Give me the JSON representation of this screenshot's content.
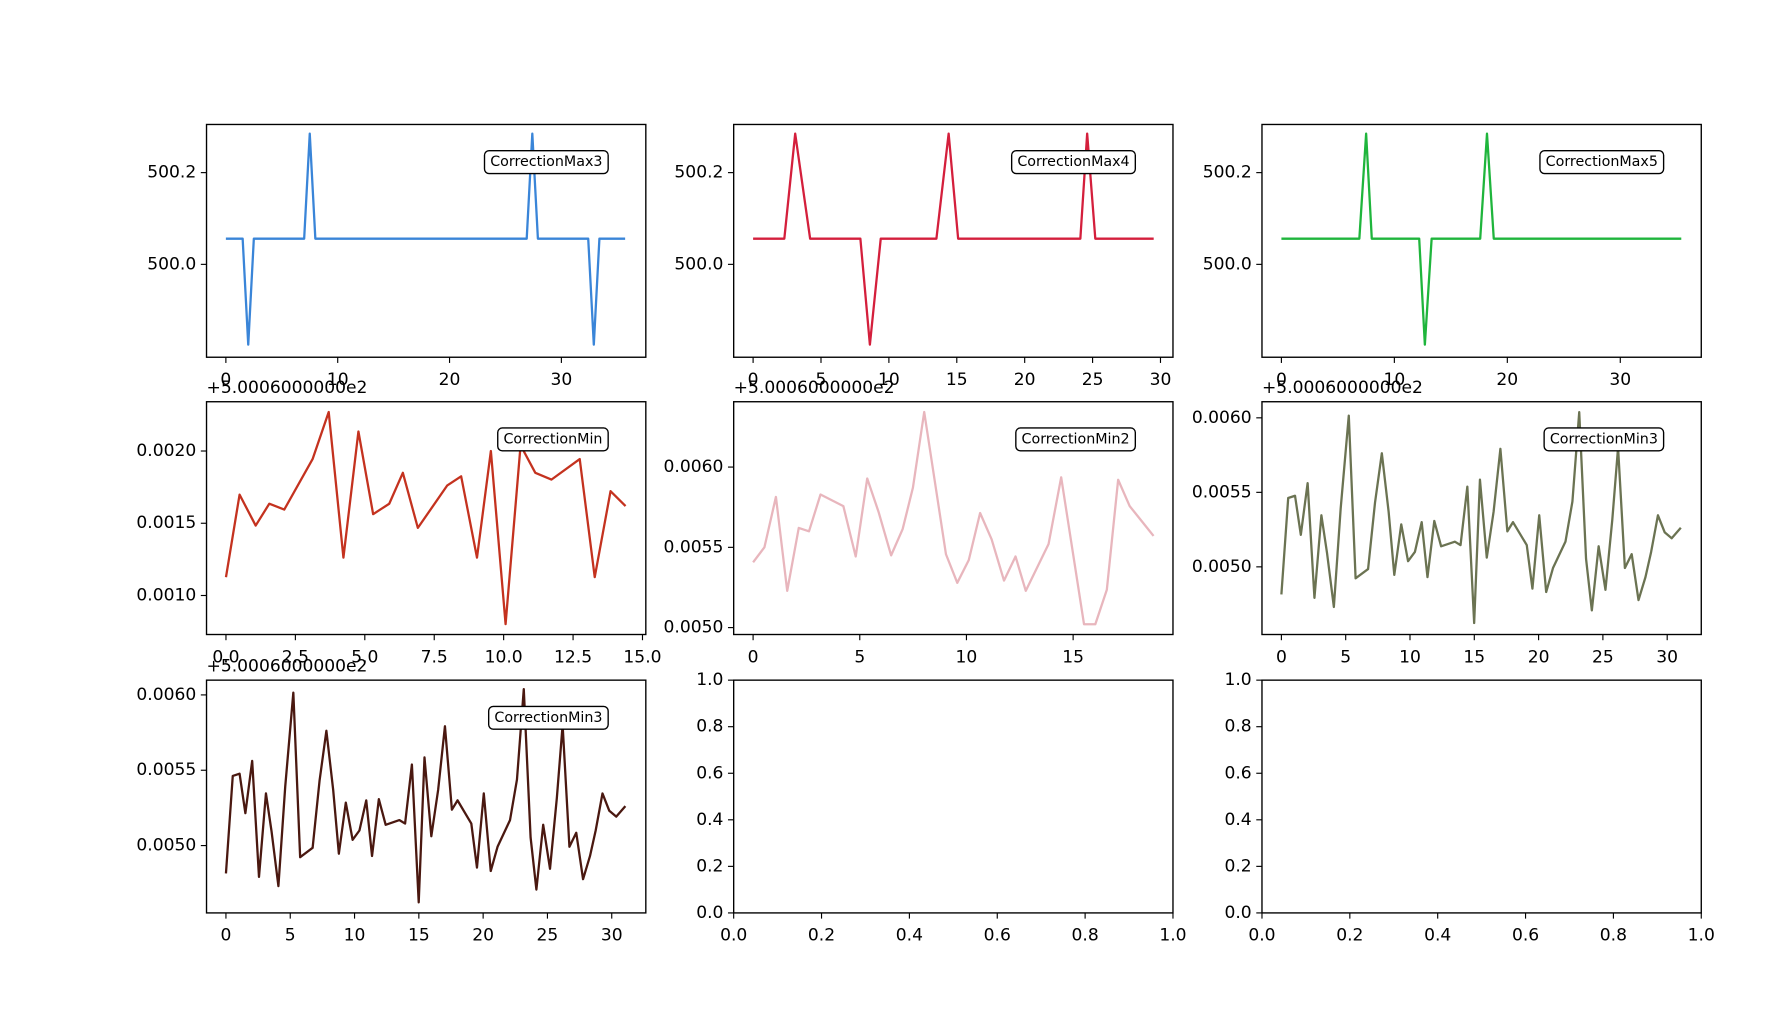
{
  "chart_data": [
    {
      "type": "line",
      "x": [
        0,
        1,
        1.5,
        2,
        2.5,
        4,
        6,
        7,
        7.5,
        8,
        10,
        14,
        18,
        22,
        26,
        26.9,
        27.4,
        27.9,
        30,
        32.4,
        32.9,
        33.4,
        35.7
      ],
      "series": [
        {
          "name": "CorrectionMax3",
          "color": "#3a85d8",
          "values": [
            500.056,
            500.056,
            500.056,
            499.825,
            500.056,
            500.056,
            500.056,
            500.056,
            500.285,
            500.056,
            500.056,
            500.056,
            500.056,
            500.056,
            500.056,
            500.056,
            500.285,
            500.056,
            500.056,
            500.056,
            499.825,
            500.056,
            500.056
          ]
        }
      ],
      "xlim": [
        -1.73,
        37.55
      ],
      "xticks": [
        0,
        10,
        20,
        30
      ],
      "ylim": [
        499.7975,
        500.305
      ],
      "yticks": [
        {
          "value": 500,
          "label": "500.0"
        },
        500.2
      ],
      "legend": "upper right"
    },
    {
      "type": "line",
      "x": [
        0,
        1,
        2.3,
        3.1,
        4.2,
        6,
        7.9,
        8.6,
        9.4,
        11,
        13.5,
        14.4,
        15.1,
        18,
        21,
        24.1,
        24.6,
        25.2,
        27,
        29.5
      ],
      "series": [
        {
          "name": "CorrectionMax4",
          "color": "#d41f3c",
          "values": [
            500.056,
            500.056,
            500.056,
            500.285,
            500.056,
            500.056,
            500.056,
            499.825,
            500.056,
            500.056,
            500.056,
            500.285,
            500.056,
            500.056,
            500.056,
            500.056,
            500.285,
            500.056,
            500.056,
            500.056
          ]
        }
      ],
      "xlim": [
        -1.43,
        30.92
      ],
      "xticks": [
        0,
        5,
        10,
        15,
        20,
        25,
        30
      ],
      "ylim": [
        499.7975,
        500.305
      ],
      "yticks": [
        {
          "value": 500,
          "label": "500.0"
        },
        500.2
      ],
      "legend": "upper right"
    },
    {
      "type": "line",
      "x": [
        0,
        2,
        4,
        6.9,
        7.5,
        8,
        10,
        12.2,
        12.7,
        13.3,
        15,
        17.6,
        18.2,
        18.8,
        22,
        26,
        30,
        35.4
      ],
      "series": [
        {
          "name": "CorrectionMax5",
          "color": "#1fb53c",
          "values": [
            500.056,
            500.056,
            500.056,
            500.056,
            500.285,
            500.056,
            500.056,
            500.056,
            499.825,
            500.056,
            500.056,
            500.056,
            500.285,
            500.056,
            500.056,
            500.056,
            500.056,
            500.056
          ]
        }
      ],
      "xlim": [
        -1.72,
        37.17
      ],
      "xticks": [
        0,
        10,
        20,
        30
      ],
      "ylim": [
        499.7975,
        500.305
      ],
      "yticks": [
        {
          "value": 500,
          "label": "500.0"
        },
        500.2
      ],
      "legend": "upper right"
    },
    {
      "type": "line",
      "x": [
        0,
        0.49,
        1.07,
        1.56,
        2.1,
        3.12,
        3.7,
        4.23,
        4.77,
        5.3,
        5.88,
        6.37,
        6.91,
        7.97,
        8.47,
        9.04,
        9.54,
        10.07,
        10.61,
        11.14,
        11.72,
        12.74,
        13.28,
        13.85,
        14.39
      ],
      "series": [
        {
          "name": "CorrectionMin",
          "color": "#c4321f",
          "values": [
            0.001127,
            0.001698,
            0.001484,
            0.001635,
            0.001595,
            0.001944,
            0.00227,
            0.001262,
            0.002135,
            0.001563,
            0.001635,
            0.001849,
            0.001468,
            0.001762,
            0.001825,
            0.001262,
            0.002,
            0.000802,
            0.00204,
            0.001849,
            0.001802,
            0.001944,
            0.001127,
            0.001722,
            0.001619
          ]
        }
      ],
      "xlim": [
        -0.7,
        15.12
      ],
      "xticks": [
        {
          "value": 0,
          "label": "0.0"
        },
        2.5,
        {
          "value": 5,
          "label": "5.0"
        },
        7.5,
        {
          "value": 10,
          "label": "10.0"
        },
        12.5,
        {
          "value": 15,
          "label": "15.0"
        }
      ],
      "ylim": [
        0.00073,
        0.002341
      ],
      "yticks": [
        {
          "value": 0.001,
          "label": "0.0010"
        },
        0.0015,
        {
          "value": 0.002,
          "label": "0.0020"
        }
      ],
      "y_offset": "+5.0006000000e2",
      "legend": "upper right"
    },
    {
      "type": "line",
      "x": [
        0,
        0.53,
        1.07,
        1.6,
        2.14,
        2.62,
        3.16,
        4.23,
        4.81,
        5.35,
        5.88,
        6.47,
        7.01,
        7.49,
        8.02,
        9.04,
        9.57,
        10.11,
        10.64,
        11.18,
        11.76,
        12.3,
        12.78,
        13.85,
        14.44,
        15.51,
        16.04,
        16.58,
        17.11,
        17.65,
        18.77
      ],
      "series": [
        {
          "name": "CorrectionMin2",
          "color": "#e8b6bd",
          "values": [
            0.005407,
            0.0055,
            0.005814,
            0.005229,
            0.005621,
            0.0056,
            0.005829,
            0.005757,
            0.005443,
            0.005929,
            0.005721,
            0.00545,
            0.005614,
            0.005871,
            0.006343,
            0.005457,
            0.005279,
            0.005421,
            0.005714,
            0.00555,
            0.005293,
            0.005443,
            0.005229,
            0.005521,
            0.005936,
            0.005021,
            0.005021,
            0.005236,
            0.005921,
            0.005757,
            0.005571
          ]
        }
      ],
      "xlim": [
        -0.91,
        19.68
      ],
      "xticks": [
        0,
        5,
        10,
        15
      ],
      "ylim": [
        0.004957,
        0.006407
      ],
      "yticks": [
        {
          "value": 0.005,
          "label": "0.0050"
        },
        0.0055,
        {
          "value": 0.006,
          "label": "0.0060"
        }
      ],
      "y_offset": "+5.0006000000e2",
      "legend": "upper right"
    },
    {
      "type": "line",
      "x": [
        0,
        0.53,
        1.06,
        1.51,
        2.04,
        2.57,
        3.11,
        3.55,
        4.08,
        4.61,
        5.24,
        5.77,
        6.74,
        7.28,
        7.81,
        8.34,
        8.78,
        9.32,
        9.85,
        10.38,
        10.91,
        11.36,
        11.89,
        12.42,
        13.49,
        13.93,
        14.46,
        14.99,
        15.44,
        15.97,
        16.5,
        17.03,
        17.57,
        18.01,
        19.08,
        19.52,
        20.05,
        20.59,
        21.12,
        22.09,
        22.63,
        23.16,
        23.69,
        24.14,
        24.67,
        25.2,
        25.73,
        26.18,
        26.71,
        27.24,
        27.77,
        28.31,
        28.75,
        29.28,
        29.81,
        30.35,
        31.06
      ],
      "series": [
        {
          "name": "CorrectionMin3",
          "color": "#6b7352",
          "values": [
            0.004815,
            0.005462,
            0.005477,
            0.005215,
            0.005562,
            0.004792,
            0.005346,
            0.005092,
            0.004731,
            0.005392,
            0.006015,
            0.004923,
            0.004985,
            0.005431,
            0.005762,
            0.005369,
            0.004946,
            0.005285,
            0.005038,
            0.0051,
            0.0053,
            0.004931,
            0.005308,
            0.005138,
            0.005169,
            0.005146,
            0.005538,
            0.004623,
            0.005585,
            0.005062,
            0.005369,
            0.005792,
            0.005238,
            0.0053,
            0.005146,
            0.004854,
            0.005346,
            0.004831,
            0.004992,
            0.005169,
            0.005438,
            0.006038,
            0.005054,
            0.004708,
            0.005138,
            0.004846,
            0.005315,
            0.0058,
            0.004992,
            0.005085,
            0.004777,
            0.004931,
            0.0051,
            0.005346,
            0.005231,
            0.005192,
            0.005262
          ]
        }
      ],
      "xlim": [
        -1.51,
        32.65
      ],
      "xticks": [
        0,
        5,
        10,
        15,
        20,
        25,
        30
      ],
      "ylim": [
        0.004546,
        0.006108
      ],
      "yticks": [
        {
          "value": 0.005,
          "label": "0.0050"
        },
        0.0055,
        {
          "value": 0.006,
          "label": "0.0060"
        }
      ],
      "y_offset": "+5.0006000000e2",
      "legend": "upper right"
    },
    {
      "type": "line",
      "x": [
        0,
        0.53,
        1.06,
        1.51,
        2.04,
        2.57,
        3.11,
        3.55,
        4.08,
        4.61,
        5.24,
        5.77,
        6.74,
        7.28,
        7.81,
        8.34,
        8.78,
        9.32,
        9.85,
        10.38,
        10.91,
        11.36,
        11.89,
        12.42,
        13.49,
        13.93,
        14.46,
        14.99,
        15.44,
        15.97,
        16.5,
        17.03,
        17.57,
        18.01,
        19.08,
        19.52,
        20.05,
        20.59,
        21.12,
        22.09,
        22.63,
        23.16,
        23.69,
        24.14,
        24.67,
        25.2,
        25.73,
        26.18,
        26.71,
        27.24,
        27.77,
        28.31,
        28.75,
        29.28,
        29.81,
        30.35,
        31.06
      ],
      "series": [
        {
          "name": "CorrectionMin3",
          "color": "#4a1810",
          "values": [
            0.004815,
            0.005462,
            0.005477,
            0.005215,
            0.005562,
            0.004792,
            0.005346,
            0.005092,
            0.004731,
            0.005392,
            0.006015,
            0.004923,
            0.004985,
            0.005431,
            0.005762,
            0.005369,
            0.004946,
            0.005285,
            0.005038,
            0.0051,
            0.0053,
            0.004931,
            0.005308,
            0.005138,
            0.005169,
            0.005146,
            0.005538,
            0.004623,
            0.005585,
            0.005062,
            0.005369,
            0.005792,
            0.005238,
            0.0053,
            0.005146,
            0.004854,
            0.005346,
            0.004831,
            0.004992,
            0.005169,
            0.005438,
            0.006038,
            0.005054,
            0.004708,
            0.005138,
            0.004846,
            0.005315,
            0.0058,
            0.004992,
            0.005085,
            0.004777,
            0.004931,
            0.0051,
            0.005346,
            0.005231,
            0.005192,
            0.005262
          ]
        }
      ],
      "xlim": [
        -1.51,
        32.65
      ],
      "xticks": [
        0,
        5,
        10,
        15,
        20,
        25,
        30
      ],
      "ylim": [
        0.004553,
        0.006098
      ],
      "yticks": [
        {
          "value": 0.005,
          "label": "0.0050"
        },
        0.0055,
        {
          "value": 0.006,
          "label": "0.0060"
        }
      ],
      "y_offset": "+5.0006000000e2",
      "legend": "upper right"
    },
    {
      "type": "line",
      "xlim": [
        0,
        1
      ],
      "xticks": [
        {
          "value": 0,
          "label": "0.0"
        },
        0.2,
        0.4,
        0.6,
        0.8,
        {
          "value": 1,
          "label": "1.0"
        }
      ],
      "ylim": [
        0,
        1
      ],
      "yticks": [
        {
          "value": 0,
          "label": "0.0"
        },
        0.2,
        0.4,
        0.6,
        0.8,
        {
          "value": 1,
          "label": "1.0"
        }
      ]
    },
    {
      "type": "line",
      "xlim": [
        0,
        1
      ],
      "xticks": [
        {
          "value": 0,
          "label": "0.0"
        },
        0.2,
        0.4,
        0.6,
        0.8,
        {
          "value": 1,
          "label": "1.0"
        }
      ],
      "ylim": [
        0,
        1
      ],
      "yticks": [
        {
          "value": 0,
          "label": "0.0"
        },
        0.2,
        0.4,
        0.6,
        0.8,
        {
          "value": 1,
          "label": "1.0"
        }
      ]
    }
  ]
}
